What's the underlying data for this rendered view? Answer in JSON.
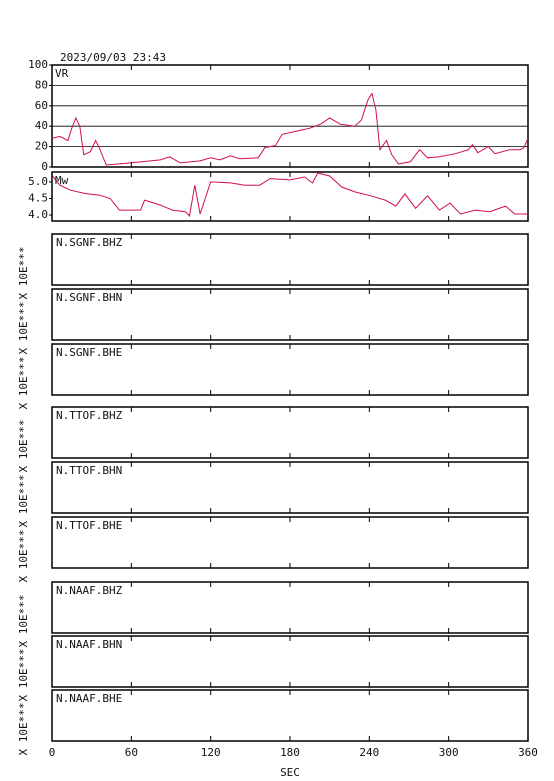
{
  "timestamp": "2023/09/03 23:43",
  "chart_data": [
    {
      "type": "line",
      "xlim": [
        0,
        360
      ],
      "ylim": [
        0,
        100
      ],
      "yticks": [
        0,
        20,
        40,
        60,
        80,
        100
      ],
      "grid": true,
      "x": [
        0,
        6,
        12,
        15,
        18,
        21,
        24,
        29,
        33,
        36,
        41,
        51,
        67,
        82,
        89,
        97,
        112,
        120,
        127,
        135,
        142,
        156,
        161,
        169,
        174,
        188,
        195,
        203,
        210,
        218,
        229,
        234,
        239,
        242,
        245,
        248,
        253,
        257,
        262,
        271,
        278,
        284,
        293,
        305,
        315,
        318,
        322,
        330,
        335,
        346,
        354,
        357,
        360
      ],
      "series": [
        {
          "name": "VR",
          "color": "#d0104a",
          "values": [
            28,
            30,
            26,
            38,
            48,
            40,
            12,
            15,
            26,
            18,
            2,
            3,
            5,
            7,
            10,
            4,
            6,
            9,
            7,
            11,
            8,
            9,
            19,
            21,
            32,
            36,
            38,
            42,
            48,
            42,
            40,
            46,
            66,
            72,
            56,
            17,
            26,
            12,
            3,
            5,
            17,
            9,
            10,
            13,
            17,
            22,
            14,
            20,
            13,
            17,
            17,
            19,
            28
          ]
        }
      ]
    },
    {
      "type": "line",
      "xlim": [
        0,
        360
      ],
      "ylim": [
        3.82,
        5.3
      ],
      "yticks": [
        {
          "value": 4,
          "label": "4.0"
        },
        4.5,
        {
          "value": 5,
          "label": "5.0"
        }
      ],
      "grid": false,
      "x": [
        0,
        6,
        14,
        25,
        36,
        44,
        51,
        67,
        70,
        82,
        91,
        101,
        104,
        108,
        112,
        120,
        135,
        146,
        157,
        165,
        180,
        191,
        197,
        201,
        210,
        219,
        229,
        241,
        252,
        260,
        267,
        275,
        284,
        293,
        301,
        309,
        320,
        331,
        343,
        350,
        360
      ],
      "series": [
        {
          "name": "Mw",
          "color": "#d0104a",
          "values": [
            5.2,
            4.9,
            4.75,
            4.65,
            4.6,
            4.5,
            4.15,
            4.15,
            4.45,
            4.3,
            4.15,
            4.1,
            3.97,
            4.9,
            4.03,
            5.0,
            4.97,
            4.9,
            4.9,
            5.1,
            5.06,
            5.15,
            4.97,
            5.27,
            5.18,
            4.85,
            4.7,
            4.58,
            4.45,
            4.27,
            4.64,
            4.2,
            4.58,
            4.15,
            4.36,
            4.03,
            4.15,
            4.1,
            4.27,
            4.03,
            4.03
          ]
        }
      ]
    }
  ],
  "traces": [
    {
      "label": "N.SGNF.BHZ",
      "scale": "X 10E***"
    },
    {
      "label": "N.SGNF.BHN",
      "scale": "X 10E***"
    },
    {
      "label": "N.SGNF.BHE",
      "scale": "X 10E***"
    },
    {
      "label": "N.TTOF.BHZ",
      "scale": "X 10E***"
    },
    {
      "label": "N.TTOF.BHN",
      "scale": "X 10E***"
    },
    {
      "label": "N.TTOF.BHE",
      "scale": "X 10E***"
    },
    {
      "label": "N.NAAF.BHZ",
      "scale": "X 10E***"
    },
    {
      "label": "N.NAAF.BHN",
      "scale": "X 10E***"
    },
    {
      "label": "N.NAAF.BHE",
      "scale": "X 10E***"
    }
  ],
  "x_axis": {
    "label": "SEC",
    "lim": [
      0,
      360
    ],
    "ticks": [
      0,
      60,
      120,
      180,
      240,
      300,
      360
    ]
  }
}
